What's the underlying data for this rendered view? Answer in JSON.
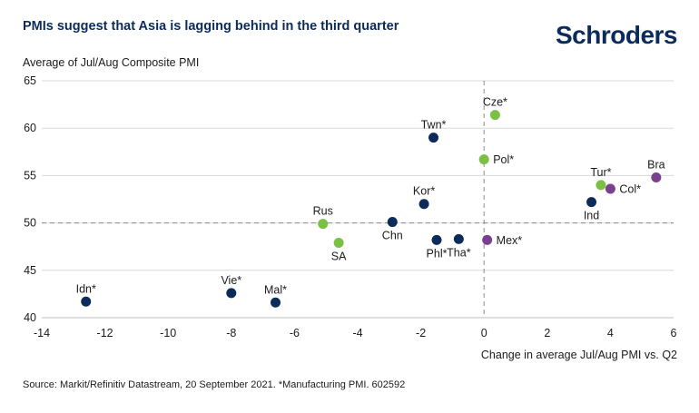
{
  "header": {
    "title": "PMIs suggest that Asia is lagging behind in the third quarter",
    "logo_text": "Schroders"
  },
  "footer": {
    "source": "Source: Markit/Refinitiv Datastream, 20 September 2021. *Manufacturing PMI. 602592"
  },
  "colors": {
    "asia": "#0b2b5b",
    "emea": "#7ac143",
    "latam": "#7b3f8f",
    "grid": "#d9d9d9",
    "reference": "#8a8a8a"
  },
  "chart_data": {
    "type": "scatter",
    "title": "PMIs suggest that Asia is lagging behind in the third quarter",
    "xlabel": "Change in average Jul/Aug PMI vs. Q2",
    "ylabel": "Average of Jul/Aug Composite PMI",
    "xlim": [
      -14,
      6
    ],
    "ylim": [
      40,
      65
    ],
    "xticks": [
      -14,
      -12,
      -10,
      -8,
      -6,
      -4,
      -2,
      0,
      2,
      4,
      6
    ],
    "yticks": [
      40,
      45,
      50,
      55,
      60,
      65
    ],
    "grid": "horizontal",
    "reference_lines": {
      "x": 0,
      "y": 50
    },
    "points": [
      {
        "label": "Idn*",
        "x": -12.6,
        "y": 41.7,
        "group": "asia",
        "label_pos": "above"
      },
      {
        "label": "Vie*",
        "x": -8.0,
        "y": 42.6,
        "group": "asia",
        "label_pos": "above"
      },
      {
        "label": "Mal*",
        "x": -6.6,
        "y": 41.6,
        "group": "asia",
        "label_pos": "above"
      },
      {
        "label": "Rus",
        "x": -5.1,
        "y": 49.9,
        "group": "emea",
        "label_pos": "above"
      },
      {
        "label": "SA",
        "x": -4.6,
        "y": 47.9,
        "group": "emea",
        "label_pos": "below"
      },
      {
        "label": "Chn",
        "x": -2.9,
        "y": 50.1,
        "group": "asia",
        "label_pos": "below"
      },
      {
        "label": "Kor*",
        "x": -1.9,
        "y": 52.0,
        "group": "asia",
        "label_pos": "above"
      },
      {
        "label": "Twn*",
        "x": -1.6,
        "y": 59.0,
        "group": "asia",
        "label_pos": "above"
      },
      {
        "label": "Phl*",
        "x": -1.5,
        "y": 48.2,
        "group": "asia",
        "label_pos": "below"
      },
      {
        "label": "Tha*",
        "x": -0.8,
        "y": 48.3,
        "group": "asia",
        "label_pos": "below"
      },
      {
        "label": "Mex*",
        "x": 0.1,
        "y": 48.2,
        "group": "latam",
        "label_pos": "right"
      },
      {
        "label": "Pol*",
        "x": 0.0,
        "y": 56.7,
        "group": "emea",
        "label_pos": "right"
      },
      {
        "label": "Cze*",
        "x": 0.35,
        "y": 61.4,
        "group": "emea",
        "label_pos": "above"
      },
      {
        "label": "Ind",
        "x": 3.4,
        "y": 52.2,
        "group": "asia",
        "label_pos": "below"
      },
      {
        "label": "Tur*",
        "x": 3.7,
        "y": 54.0,
        "group": "emea",
        "label_pos": "above"
      },
      {
        "label": "Col*",
        "x": 4.0,
        "y": 53.6,
        "group": "latam",
        "label_pos": "right"
      },
      {
        "label": "Bra",
        "x": 5.45,
        "y": 54.8,
        "group": "latam",
        "label_pos": "above"
      }
    ]
  }
}
